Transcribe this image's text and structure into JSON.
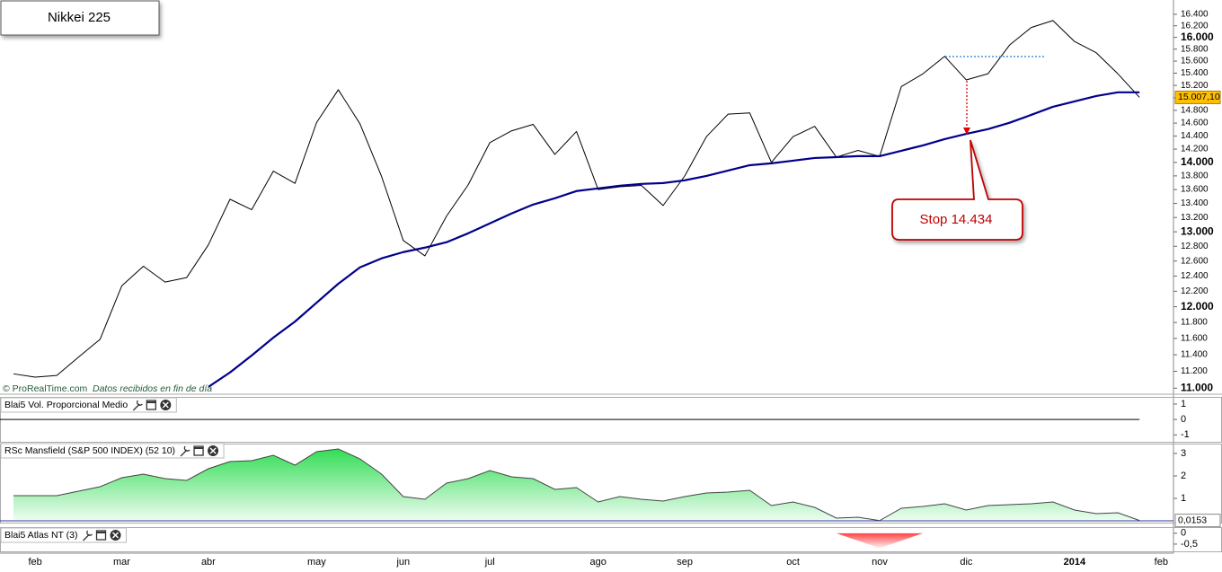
{
  "chart_data": [
    {
      "type": "line",
      "title": "Nikkei 225",
      "log_scale": true,
      "categories": [
        null,
        "feb",
        null,
        null,
        null,
        "mar",
        null,
        null,
        null,
        "abr",
        null,
        null,
        null,
        null,
        "may",
        null,
        null,
        null,
        "jun",
        null,
        null,
        null,
        "jul",
        null,
        null,
        null,
        null,
        "ago",
        null,
        null,
        null,
        "sep",
        null,
        null,
        null,
        null,
        "oct",
        null,
        null,
        null,
        "nov",
        null,
        null,
        null,
        "dic",
        null,
        null,
        null,
        null,
        "2014",
        null,
        null,
        null,
        "feb"
      ],
      "series": [
        {
          "color": "#000000",
          "line_width": 1,
          "label_background": "#ffc000",
          "values": [
            11170,
            11130,
            11150,
            11370,
            11590,
            12270,
            12530,
            12320,
            12380,
            12820,
            13460,
            13310,
            13870,
            13690,
            14610,
            15130,
            14590,
            13790,
            12880,
            12670,
            13220,
            13670,
            14300,
            14480,
            14580,
            14120,
            14470,
            13600,
            13640,
            13660,
            13370,
            13800,
            14390,
            14740,
            14760,
            14000,
            14390,
            14550,
            14080,
            14180,
            14090,
            15180,
            15390,
            15680,
            15290,
            15390,
            15870,
            16170,
            16290,
            15930,
            15740,
            15390,
            15007.1,
            null
          ],
          "value_labels": [
            null,
            null,
            null,
            null,
            null,
            null,
            null,
            null,
            null,
            null,
            null,
            null,
            null,
            null,
            null,
            null,
            null,
            null,
            null,
            null,
            null,
            null,
            null,
            null,
            null,
            null,
            null,
            null,
            null,
            null,
            null,
            null,
            null,
            null,
            null,
            null,
            null,
            null,
            null,
            null,
            null,
            null,
            null,
            null,
            null,
            null,
            null,
            null,
            null,
            null,
            null,
            null,
            "15.007,10",
            null
          ]
        },
        {
          "color": "#00008b",
          "line_width": 2.2,
          "values": [
            null,
            null,
            null,
            null,
            null,
            null,
            null,
            null,
            null,
            11015,
            11187,
            11391,
            11610,
            11811,
            12052,
            12298,
            12515,
            12636,
            12721,
            12782,
            12856,
            12979,
            13117,
            13256,
            13384,
            13474,
            13578,
            13617,
            13656,
            13682,
            13694,
            13735,
            13799,
            13879,
            13958,
            13986,
            14026,
            14066,
            14079,
            14094,
            14094,
            14175,
            14257,
            14353,
            14434,
            14506,
            14606,
            14729,
            14857,
            14942,
            15029,
            15088,
            15088,
            null
          ]
        }
      ],
      "ylim": [
        10940,
        16620
      ],
      "yticks": [
        {
          "value": 11000,
          "label": "11.000"
        },
        {
          "value": 11200,
          "label": "11.200"
        },
        {
          "value": 11400,
          "label": "11.400"
        },
        {
          "value": 11600,
          "label": "11.600"
        },
        {
          "value": 11800,
          "label": "11.800"
        },
        {
          "value": 12000,
          "label": "12.000"
        },
        {
          "value": 12200,
          "label": "12.200"
        },
        {
          "value": 12400,
          "label": "12.400"
        },
        {
          "value": 12600,
          "label": "12.600"
        },
        {
          "value": 12800,
          "label": "12.800"
        },
        {
          "value": 13000,
          "label": "13.000"
        },
        {
          "value": 13200,
          "label": "13.200"
        },
        {
          "value": 13400,
          "label": "13.400"
        },
        {
          "value": 13600,
          "label": "13.600"
        },
        {
          "value": 13800,
          "label": "13.800"
        },
        {
          "value": 14000,
          "label": "14.000"
        },
        {
          "value": 14200,
          "label": "14.200"
        },
        {
          "value": 14400,
          "label": "14.400"
        },
        {
          "value": 14600,
          "label": "14.600"
        },
        {
          "value": 14800,
          "label": "14.800"
        },
        {
          "value": 15000,
          "label": "15.000"
        },
        {
          "value": 15200,
          "label": "15.200"
        },
        {
          "value": 15400,
          "label": "15.400"
        },
        {
          "value": 15600,
          "label": "15.600"
        },
        {
          "value": 15800,
          "label": "15.800"
        },
        {
          "value": 16000,
          "label": "16.000"
        },
        {
          "value": 16200,
          "label": "16.200"
        },
        {
          "value": 16400,
          "label": "16.400"
        }
      ],
      "annotations": [
        "Stop 14.434"
      ],
      "source": "© ProRealTime.com",
      "note": "Datos recibidos en fin de día"
    },
    {
      "type": "line",
      "title": "Blai5 Vol. Proporcional Medio",
      "color": "#000000",
      "values": [
        0,
        0,
        0,
        0,
        0,
        0,
        0,
        0,
        0,
        0,
        0,
        0,
        0,
        0,
        0,
        0,
        0,
        0,
        0,
        0,
        0,
        0,
        0,
        0,
        0,
        0,
        0,
        0,
        0,
        0,
        0,
        0,
        0,
        0,
        0,
        0,
        0,
        0,
        0,
        0,
        0,
        0,
        0,
        0,
        0,
        0,
        0,
        0,
        0,
        0,
        0,
        0,
        0
      ],
      "ylim": [
        -1.45,
        1.35
      ],
      "yticks": [
        1,
        0,
        -1
      ]
    },
    {
      "type": "area",
      "title": "RSc Mansfield (S&P 500 INDEX) (52 10)",
      "color": "#33dd55",
      "line_color": "#444444",
      "baseline_color": "#3333aa",
      "values": [
        1.12,
        1.12,
        1.12,
        1.32,
        1.52,
        1.92,
        2.08,
        1.88,
        1.8,
        2.32,
        2.64,
        2.68,
        2.92,
        2.48,
        3.08,
        3.2,
        2.76,
        2.08,
        1.08,
        0.96,
        1.68,
        1.88,
        2.24,
        1.96,
        1.88,
        1.4,
        1.48,
        0.84,
        1.08,
        0.96,
        0.88,
        1.08,
        1.24,
        1.28,
        1.36,
        0.68,
        0.84,
        0.6,
        0.12,
        0.16,
        0.01,
        0.56,
        0.64,
        0.76,
        0.48,
        0.68,
        0.72,
        0.76,
        0.84,
        0.48,
        0.32,
        0.36,
        0.0153
      ],
      "value_labels": [
        null,
        null,
        null,
        null,
        null,
        null,
        null,
        null,
        null,
        null,
        null,
        null,
        null,
        null,
        null,
        null,
        null,
        null,
        null,
        null,
        null,
        null,
        null,
        null,
        null,
        null,
        null,
        null,
        null,
        null,
        null,
        null,
        null,
        null,
        null,
        null,
        null,
        null,
        null,
        null,
        null,
        null,
        null,
        null,
        null,
        null,
        null,
        null,
        null,
        null,
        null,
        null,
        "0,0153"
      ],
      "ylim": [
        -0.04,
        3.4
      ],
      "yticks": [
        3,
        2,
        1
      ]
    },
    {
      "type": "area",
      "title": "Blai5 Atlas NT (3)",
      "color": "#ff4444",
      "values": [
        0,
        0,
        0,
        0,
        0,
        0,
        0,
        0,
        0,
        0,
        0,
        0,
        0,
        0,
        0,
        0,
        0,
        0,
        0,
        0,
        0,
        0,
        0,
        0,
        0,
        0,
        0,
        0,
        0,
        0,
        0,
        0,
        0,
        0,
        0,
        0,
        0,
        0,
        0,
        -0.34,
        -0.68,
        -0.34,
        0,
        0,
        0,
        0,
        0,
        0,
        0,
        0,
        0,
        0,
        0
      ],
      "ylim": [
        -0.75,
        0.2
      ],
      "yticks": [
        0,
        {
          "value": -0.5,
          "label": "-0,5"
        }
      ]
    }
  ]
}
